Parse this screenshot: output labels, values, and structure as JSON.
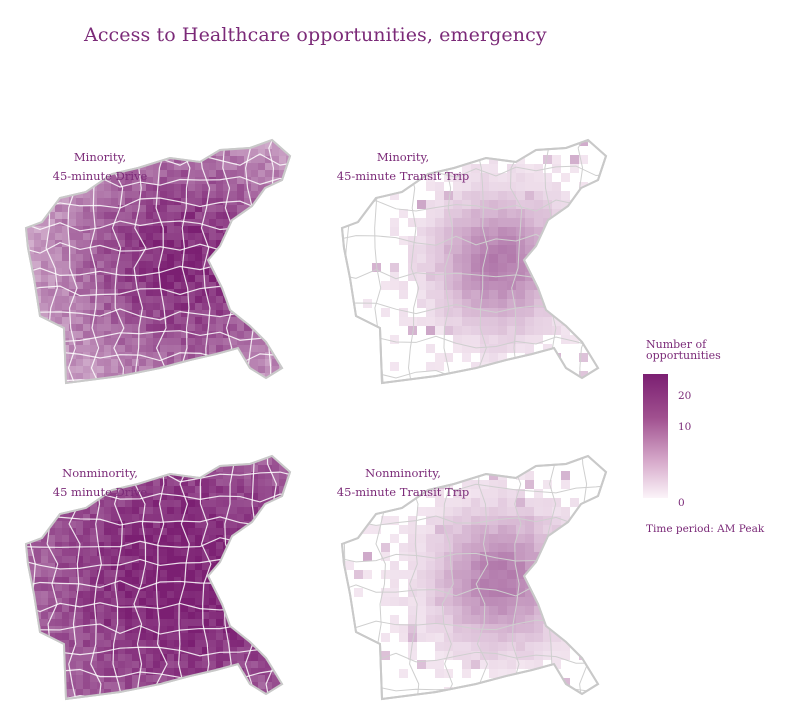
{
  "title": "Access to Healthcare opportunities, emergency",
  "panels": [
    {
      "label_1": "Minority,",
      "label_2": "45-minute Drive",
      "intensity": "high"
    },
    {
      "label_1": "Minority,",
      "label_2": "45-minute Transit Trip",
      "intensity": "low"
    },
    {
      "label_1": "Nonminority,",
      "label_2": "45 minute Drive",
      "intensity": "very-high"
    },
    {
      "label_1": "Nonminority,",
      "label_2": "45-minute Transit Trip",
      "intensity": "low"
    }
  ],
  "legend": {
    "title_1": "Number of",
    "title_2": "opportunities",
    "ticks": [
      "20",
      "10",
      "0"
    ],
    "tick_values": [
      20,
      10,
      0
    ],
    "max_value": 24,
    "color_high": "#7b1f72",
    "color_low": "#fbf4f9",
    "period": "Time period: AM Peak"
  },
  "colors": {
    "text": "#7b2a78",
    "boundary": "#c9c9c9"
  }
}
